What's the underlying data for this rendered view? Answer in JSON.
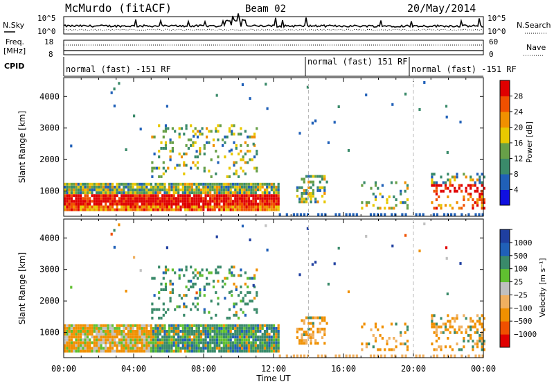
{
  "header": {
    "station": "McMurdo (fitACF)",
    "beam": "Beam 02",
    "date": "20/May/2014"
  },
  "noise_panel": {
    "left_label": "N.Sky",
    "right_label": "N.Search",
    "left_ticks": [
      "10^5",
      "10^0"
    ],
    "right_ticks": [
      "10^5",
      "10^0"
    ]
  },
  "freq_panel": {
    "left_label_1": "Freq.",
    "left_label_2": "[MHz]",
    "right_label": "Nave",
    "left_ticks": [
      "18",
      "8"
    ],
    "right_ticks": [
      "60",
      "0"
    ]
  },
  "cpid": {
    "label": "CPID",
    "segments": [
      "normal (fast) -151 RF",
      "normal (fast) 151 RF",
      "normal (fast) -151 RF"
    ]
  },
  "colors": {
    "power_scale": [
      "#1010e0",
      "#2060b8",
      "#3a8a6a",
      "#68a048",
      "#e8c800",
      "#f09000",
      "#f05000",
      "#e00000"
    ],
    "velocity_scale": [
      "#e00000",
      "#f05000",
      "#f09000",
      "#f0b060",
      "#c0c0c0",
      "#60c030",
      "#3a8a6a",
      "#2060b8",
      "#1f3fa0"
    ]
  },
  "chart_data": [
    {
      "type": "heatmap",
      "title": "",
      "xlabel": "",
      "ylabel": "Slant Range [km]",
      "ylim": [
        200,
        4600
      ],
      "x_ticks": [
        "00:00",
        "04:00",
        "08:00",
        "12:00",
        "16:00",
        "20:00",
        "00:00"
      ],
      "y_ticks": [
        "1000",
        "2000",
        "3000",
        "4000"
      ],
      "colorbar_label": "Power [dB]",
      "colorbar_ticks": [
        "4",
        "8",
        "12",
        "16",
        "20",
        "24",
        "28"
      ],
      "cpid_change_times_ut": [
        "14:00",
        "20:00"
      ]
    },
    {
      "type": "heatmap",
      "title": "",
      "xlabel": "Time UT",
      "ylabel": "Slant Range [km]",
      "ylim": [
        200,
        4600
      ],
      "x_ticks": [
        "00:00",
        "04:00",
        "08:00",
        "12:00",
        "16:00",
        "20:00",
        "00:00"
      ],
      "y_ticks": [
        "1000",
        "2000",
        "3000",
        "4000"
      ],
      "colorbar_label": "Velocity [m s⁻¹]",
      "colorbar_ticks": [
        "1000",
        "500",
        "100",
        "25",
        "−25",
        "−100",
        "−500",
        "−1000"
      ],
      "cpid_change_times_ut": [
        "14:00",
        "20:00"
      ]
    }
  ]
}
